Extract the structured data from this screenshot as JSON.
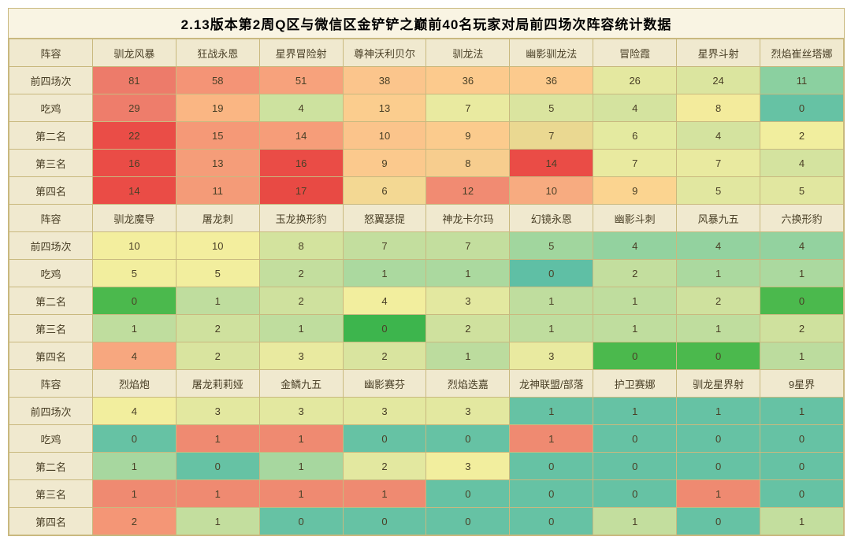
{
  "title": "2.13版本第2周Q区与微信区金铲铲之巅前40名玩家对局前四场次阵容统计数据",
  "row_label_header": "阵容",
  "row_labels": [
    "前四场次",
    "吃鸡",
    "第二名",
    "第三名",
    "第四名"
  ],
  "blocks": [
    {
      "comps": [
        "驯龙风暴",
        "狂战永恩",
        "星界冒险射",
        "尊神沃利贝尔",
        "驯龙法",
        "幽影驯龙法",
        "冒险霞",
        "星界斗射",
        "烈焰崔丝塔娜"
      ],
      "rows": [
        [
          81,
          58,
          51,
          38,
          36,
          36,
          26,
          24,
          11
        ],
        [
          29,
          19,
          4,
          13,
          7,
          5,
          4,
          8,
          0
        ],
        [
          22,
          15,
          14,
          10,
          9,
          7,
          6,
          4,
          2
        ],
        [
          16,
          13,
          16,
          9,
          8,
          14,
          7,
          7,
          4
        ],
        [
          14,
          11,
          17,
          6,
          12,
          10,
          9,
          5,
          5
        ]
      ],
      "colors": [
        [
          "#ed7b6a",
          "#f49476",
          "#f7a27c",
          "#fbc58c",
          "#fcca8d",
          "#fcca8d",
          "#e4e8a0",
          "#dbe59f",
          "#8bd0a0"
        ],
        [
          "#ee7d6b",
          "#fab683",
          "#cde29f",
          "#fbcd8e",
          "#e9eaa0",
          "#dae49f",
          "#d4e39f",
          "#f3eb9c",
          "#66c2a4"
        ],
        [
          "#ea4d47",
          "#f59977",
          "#f69d79",
          "#fbc48b",
          "#fbcb8d",
          "#ead891",
          "#e4eaa0",
          "#d4e39f",
          "#f1ee9e"
        ],
        [
          "#ea4c46",
          "#f59d79",
          "#ea4c46",
          "#fbc98d",
          "#f7cd8e",
          "#ea4c46",
          "#e9eaa0",
          "#e9eaa0",
          "#d4e39f"
        ],
        [
          "#ea4c46",
          "#f49b78",
          "#e84a44",
          "#f3d893",
          "#f18b72",
          "#f7ab80",
          "#fbd490",
          "#e1e7a0",
          "#e1e7a0"
        ]
      ]
    },
    {
      "comps": [
        "驯龙魔导",
        "屠龙刺",
        "玉龙换形豹",
        "怒翼瑟提",
        "神龙卡尔玛",
        "幻镜永恩",
        "幽影斗刺",
        "风暴九五",
        "六换形豹"
      ],
      "rows": [
        [
          10,
          10,
          8,
          7,
          7,
          5,
          4,
          4,
          4
        ],
        [
          5,
          5,
          2,
          1,
          1,
          0,
          2,
          1,
          1
        ],
        [
          0,
          1,
          2,
          4,
          3,
          1,
          1,
          2,
          0
        ],
        [
          1,
          2,
          1,
          0,
          2,
          1,
          1,
          1,
          2
        ],
        [
          4,
          2,
          3,
          2,
          1,
          3,
          0,
          0,
          1
        ]
      ],
      "colors": [
        [
          "#f3ee9e",
          "#f3ee9e",
          "#d3e39e",
          "#c3de9e",
          "#c3de9e",
          "#a1d69e",
          "#93d29f",
          "#93d29f",
          "#93d29f"
        ],
        [
          "#f2ee9e",
          "#f2ee9e",
          "#c3de9e",
          "#abd99f",
          "#abd99f",
          "#5fbfa5",
          "#c3de9e",
          "#abd99f",
          "#abd99f"
        ],
        [
          "#4bb94d",
          "#bfdd9e",
          "#cfe19e",
          "#f2ee9e",
          "#e3e8a0",
          "#bfdd9e",
          "#bfdd9e",
          "#cfe19e",
          "#4bb94d"
        ],
        [
          "#bfdd9e",
          "#cfe19e",
          "#bfdd9e",
          "#3db54d",
          "#cfe19e",
          "#bfdd9e",
          "#bfdd9e",
          "#bfdd9e",
          "#cfe19e"
        ],
        [
          "#f7a77f",
          "#d9e49f",
          "#e9eaa0",
          "#d9e49f",
          "#bcdc9e",
          "#e9eaa0",
          "#4bb94d",
          "#4bb94d",
          "#bcdc9e"
        ]
      ]
    },
    {
      "comps": [
        "烈焰炮",
        "屠龙莉莉娅",
        "金鳞九五",
        "幽影赛芬",
        "烈焰迭嘉",
        "龙神联盟/部落",
        "护卫赛娜",
        "驯龙星界射",
        "9星界"
      ],
      "rows": [
        [
          4,
          3,
          3,
          3,
          3,
          1,
          1,
          1,
          1
        ],
        [
          0,
          1,
          1,
          0,
          0,
          1,
          0,
          0,
          0
        ],
        [
          1,
          0,
          1,
          2,
          3,
          0,
          0,
          0,
          0
        ],
        [
          1,
          1,
          1,
          1,
          0,
          0,
          0,
          1,
          0
        ],
        [
          2,
          1,
          0,
          0,
          0,
          0,
          1,
          0,
          1
        ]
      ],
      "colors": [
        [
          "#f2ee9e",
          "#e3e8a0",
          "#e3e8a0",
          "#e3e8a0",
          "#e3e8a0",
          "#66c2a4",
          "#66c2a4",
          "#66c2a4",
          "#66c2a4"
        ],
        [
          "#66c2a4",
          "#ef8a71",
          "#ef8a71",
          "#66c2a4",
          "#66c2a4",
          "#ef8a71",
          "#66c2a4",
          "#66c2a4",
          "#66c2a4"
        ],
        [
          "#a7d79f",
          "#66c2a4",
          "#a7d79f",
          "#e3e8a0",
          "#f2ee9e",
          "#66c2a4",
          "#66c2a4",
          "#66c2a4",
          "#66c2a4"
        ],
        [
          "#ef8a71",
          "#ef8a71",
          "#ef8a71",
          "#ef8a71",
          "#66c2a4",
          "#66c2a4",
          "#66c2a4",
          "#ef8a71",
          "#66c2a4"
        ],
        [
          "#f49676",
          "#c3de9e",
          "#66c2a4",
          "#66c2a4",
          "#66c2a4",
          "#66c2a4",
          "#c3de9e",
          "#66c2a4",
          "#c3de9e"
        ]
      ]
    }
  ],
  "style": {
    "header_bg": "#f0e9cf",
    "border_color": "#c9b97f",
    "font_family": "Microsoft YaHei",
    "cell_fontsize": 13,
    "title_fontsize": 17,
    "text_color": "#4a4027"
  }
}
